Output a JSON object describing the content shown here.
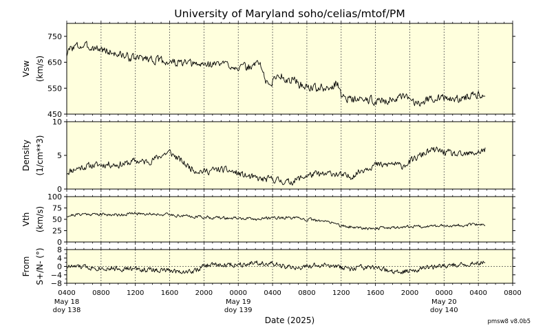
{
  "chart_data": [
    {
      "type": "line",
      "title": "University of Maryland  soho/celias/mtof/PM",
      "ylabel_lines": [
        "Vsw",
        "(km/s)"
      ],
      "ylim": [
        450,
        800
      ],
      "yticks": [
        450,
        550,
        650,
        750
      ],
      "ytick_labels": [
        "450",
        "550",
        "650",
        "750"
      ],
      "series_key": "vsw",
      "anchors": [
        [
          0,
          680
        ],
        [
          0.5,
          705
        ],
        [
          1,
          712
        ],
        [
          2,
          712
        ],
        [
          3,
          708
        ],
        [
          4,
          700
        ],
        [
          5,
          690
        ],
        [
          6,
          680
        ],
        [
          7,
          672
        ],
        [
          8,
          665
        ],
        [
          9,
          668
        ],
        [
          10,
          662
        ],
        [
          11,
          655
        ],
        [
          12,
          650
        ],
        [
          13,
          648
        ],
        [
          14,
          645
        ],
        [
          15,
          640
        ],
        [
          16,
          642
        ],
        [
          17,
          643
        ],
        [
          18,
          645
        ],
        [
          19,
          640
        ],
        [
          20,
          632
        ],
        [
          21,
          628
        ],
        [
          22,
          640
        ],
        [
          22.3,
          660
        ],
        [
          22.6,
          640
        ],
        [
          23,
          600
        ],
        [
          23.3,
          570
        ],
        [
          23.6,
          560
        ],
        [
          24,
          575
        ],
        [
          24.5,
          600
        ],
        [
          25,
          598
        ],
        [
          25.5,
          590
        ],
        [
          26,
          570
        ],
        [
          26.5,
          595
        ],
        [
          27,
          565
        ],
        [
          27.5,
          560
        ],
        [
          28,
          555
        ],
        [
          29,
          552
        ],
        [
          30,
          548
        ],
        [
          30.5,
          545
        ],
        [
          31,
          555
        ],
        [
          31.5,
          575
        ],
        [
          32,
          520
        ],
        [
          32.3,
          525
        ],
        [
          33,
          508
        ],
        [
          34,
          505
        ],
        [
          35,
          505
        ],
        [
          36,
          502
        ],
        [
          37,
          503
        ],
        [
          38,
          508
        ],
        [
          39,
          512
        ],
        [
          40,
          510
        ],
        [
          40.3,
          500
        ],
        [
          40.6,
          493
        ],
        [
          41,
          497
        ],
        [
          42,
          505
        ],
        [
          43,
          515
        ],
        [
          44,
          512
        ],
        [
          45,
          505
        ],
        [
          46,
          510
        ],
        [
          47,
          520
        ],
        [
          48,
          530
        ],
        [
          48.8,
          528
        ]
      ],
      "noise": 14,
      "seed": 3
    },
    {
      "type": "line",
      "ylabel_lines": [
        "Density",
        "(1/cm**3)"
      ],
      "ylim": [
        0,
        10
      ],
      "yticks": [
        0,
        5,
        10
      ],
      "ytick_labels": [
        "0",
        "5",
        "10"
      ],
      "series_key": "density",
      "anchors": [
        [
          0,
          2.5
        ],
        [
          1,
          3.0
        ],
        [
          2,
          3.3
        ],
        [
          3,
          3.5
        ],
        [
          4,
          3.6
        ],
        [
          5,
          3.7
        ],
        [
          6,
          3.6
        ],
        [
          7,
          3.8
        ],
        [
          8,
          4.2
        ],
        [
          9,
          4.0
        ],
        [
          10,
          4.3
        ],
        [
          11,
          5.0
        ],
        [
          12,
          5.5
        ],
        [
          13,
          4.5
        ],
        [
          14,
          3.5
        ],
        [
          15,
          2.8
        ],
        [
          16,
          2.6
        ],
        [
          17,
          2.8
        ],
        [
          18,
          2.9
        ],
        [
          19,
          2.7
        ],
        [
          20,
          2.3
        ],
        [
          21,
          1.9
        ],
        [
          22,
          1.6
        ],
        [
          23,
          1.4
        ],
        [
          24,
          1.5
        ],
        [
          25,
          1.2
        ],
        [
          26,
          1.0
        ],
        [
          27,
          1.5
        ],
        [
          28,
          2.0
        ],
        [
          29,
          2.2
        ],
        [
          30,
          2.1
        ],
        [
          31,
          2.4
        ],
        [
          32,
          2.0
        ],
        [
          33,
          1.8
        ],
        [
          34,
          2.5
        ],
        [
          35,
          3.2
        ],
        [
          36,
          3.6
        ],
        [
          37,
          3.5
        ],
        [
          38,
          3.8
        ],
        [
          39,
          3.4
        ],
        [
          40,
          4.0
        ],
        [
          41,
          4.8
        ],
        [
          42,
          5.5
        ],
        [
          43,
          5.8
        ],
        [
          44,
          5.5
        ],
        [
          45,
          5.2
        ],
        [
          46,
          5.0
        ],
        [
          47,
          5.2
        ],
        [
          48,
          5.5
        ],
        [
          48.8,
          5.8
        ]
      ],
      "noise": 0.45,
      "seed": 11
    },
    {
      "type": "line",
      "ylabel_lines": [
        "Vth",
        "(km/s)"
      ],
      "ylim": [
        0,
        100
      ],
      "yticks": [
        0,
        25,
        50,
        75,
        100
      ],
      "ytick_labels": [
        "0",
        "25",
        "50",
        "75",
        "100"
      ],
      "series_key": "vth",
      "anchors": [
        [
          0,
          58
        ],
        [
          2,
          62
        ],
        [
          4,
          61
        ],
        [
          6,
          60
        ],
        [
          8,
          63
        ],
        [
          10,
          62
        ],
        [
          12,
          60
        ],
        [
          14,
          57
        ],
        [
          16,
          55
        ],
        [
          18,
          53
        ],
        [
          20,
          52
        ],
        [
          22,
          50
        ],
        [
          24,
          54
        ],
        [
          26,
          53
        ],
        [
          28,
          50
        ],
        [
          30,
          45
        ],
        [
          31,
          44
        ],
        [
          32,
          35
        ],
        [
          34,
          32
        ],
        [
          36,
          30
        ],
        [
          38,
          32
        ],
        [
          40,
          34
        ],
        [
          42,
          35
        ],
        [
          44,
          36
        ],
        [
          46,
          37
        ],
        [
          48,
          38
        ],
        [
          48.8,
          38
        ]
      ],
      "noise": 3,
      "seed": 21
    },
    {
      "type": "line",
      "ylabel_lines": [
        "From",
        "S+/N- (°)"
      ],
      "ylim": [
        -8,
        8
      ],
      "yticks": [
        -8,
        -4,
        0,
        4,
        8
      ],
      "ytick_labels": [
        "−8",
        "−4",
        "0",
        "4",
        "8"
      ],
      "minor_yticks": [
        -6,
        -2,
        2,
        6
      ],
      "zero_line": true,
      "series_key": "angle",
      "anchors": [
        [
          0,
          0
        ],
        [
          3,
          -0.5
        ],
        [
          6,
          -1
        ],
        [
          9,
          -1.5
        ],
        [
          12,
          -2
        ],
        [
          14,
          -2.5
        ],
        [
          15,
          -2
        ],
        [
          16,
          0
        ],
        [
          17,
          1
        ],
        [
          18,
          0.5
        ],
        [
          20,
          1
        ],
        [
          22,
          2
        ],
        [
          23,
          1.5
        ],
        [
          24,
          1
        ],
        [
          26,
          -0.5
        ],
        [
          27,
          -1
        ],
        [
          28,
          0
        ],
        [
          30,
          0.5
        ],
        [
          31,
          0
        ],
        [
          32,
          -0.5
        ],
        [
          33,
          -1.5
        ],
        [
          34,
          -0.5
        ],
        [
          36,
          -1
        ],
        [
          37,
          -1.5
        ],
        [
          38,
          -2.5
        ],
        [
          39,
          -3
        ],
        [
          40,
          -2
        ],
        [
          41,
          -1
        ],
        [
          42,
          -0.5
        ],
        [
          44,
          0
        ],
        [
          46,
          1
        ],
        [
          48,
          1.5
        ],
        [
          48.8,
          2
        ]
      ],
      "noise": 1.1,
      "seed": 33
    }
  ],
  "x_axis": {
    "xlim_hours": [
      0,
      52
    ],
    "data_end_hours": 48.8,
    "tick_hours": [
      0,
      4,
      8,
      12,
      16,
      20,
      24,
      28,
      32,
      36,
      40,
      44,
      48,
      52
    ],
    "tick_labels": [
      "0400",
      "0800",
      "1200",
      "1600",
      "2000",
      "0000",
      "0400",
      "0800",
      "1200",
      "1600",
      "2000",
      "0000",
      "0400",
      "0800"
    ],
    "day_labels": [
      {
        "hour": 0,
        "lines": [
          "May 18",
          "doy 138"
        ]
      },
      {
        "hour": 20,
        "lines": [
          "May 19",
          "doy 139"
        ]
      },
      {
        "hour": 44,
        "lines": [
          "May 20",
          "doy 140"
        ]
      }
    ],
    "xlabel": "Date (2025)"
  },
  "footer_label": "pmsw8 v8.0b5",
  "colors": {
    "panel_bg": "#ffffdd",
    "line": "#000000",
    "grid": "#555555"
  }
}
